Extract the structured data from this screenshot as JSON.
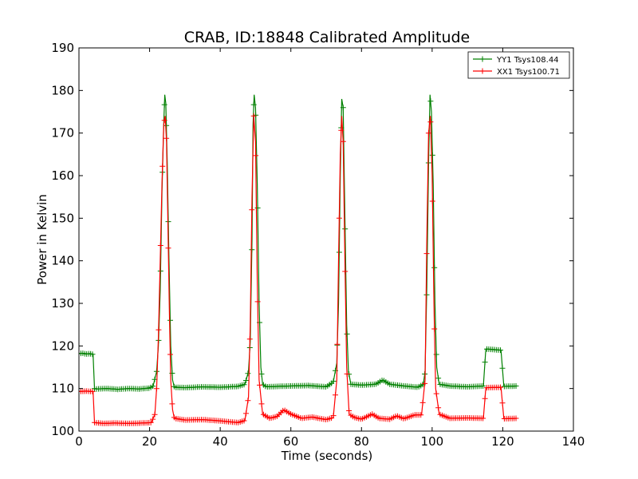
{
  "chart_data": {
    "type": "line",
    "title": "CRAB, ID:18848 Calibrated Amplitude",
    "xlabel": "Time (seconds)",
    "ylabel": "Power in Kelvin",
    "xlim": [
      0,
      140
    ],
    "ylim": [
      100,
      190
    ],
    "xticks": [
      0,
      20,
      40,
      60,
      80,
      100,
      120,
      140
    ],
    "yticks": [
      100,
      110,
      120,
      130,
      140,
      150,
      160,
      170,
      180,
      190
    ],
    "grid": false,
    "legend_position": "top-right",
    "marker": "+",
    "series": [
      {
        "name": "YY1 Tsys108.44",
        "color": "#008000",
        "points": [
          [
            0,
            118.2
          ],
          [
            1,
            118.3
          ],
          [
            2,
            118.1
          ],
          [
            3,
            118.2
          ],
          [
            4,
            118.0
          ],
          [
            4.4,
            110.0
          ],
          [
            5,
            109.9
          ],
          [
            8,
            110.0
          ],
          [
            11,
            109.8
          ],
          [
            14,
            110.0
          ],
          [
            17,
            109.9
          ],
          [
            20,
            110.1
          ],
          [
            21,
            110.6
          ],
          [
            22,
            114
          ],
          [
            22.5,
            120
          ],
          [
            23,
            133
          ],
          [
            23.5,
            156
          ],
          [
            24,
            172
          ],
          [
            24.3,
            179
          ],
          [
            24.6,
            177
          ],
          [
            25,
            163
          ],
          [
            25.5,
            140
          ],
          [
            26,
            120
          ],
          [
            26.5,
            112
          ],
          [
            27,
            110.3
          ],
          [
            30,
            110.2
          ],
          [
            35,
            110.4
          ],
          [
            40,
            110.3
          ],
          [
            45,
            110.5
          ],
          [
            47,
            111.0
          ],
          [
            48,
            114
          ],
          [
            48.5,
            121
          ],
          [
            49,
            145
          ],
          [
            49.3,
            172
          ],
          [
            49.6,
            179
          ],
          [
            50,
            176
          ],
          [
            50.5,
            158
          ],
          [
            51,
            130
          ],
          [
            51.5,
            115
          ],
          [
            52,
            111
          ],
          [
            53,
            110.4
          ],
          [
            56,
            110.5
          ],
          [
            60,
            110.6
          ],
          [
            65,
            110.7
          ],
          [
            70,
            110.4
          ],
          [
            72,
            111.5
          ],
          [
            73,
            116
          ],
          [
            73.5,
            130
          ],
          [
            74,
            160
          ],
          [
            74.4,
            178
          ],
          [
            74.8,
            176
          ],
          [
            75.3,
            150
          ],
          [
            75.8,
            125
          ],
          [
            76.3,
            114
          ],
          [
            77,
            111
          ],
          [
            80,
            110.8
          ],
          [
            84,
            111.0
          ],
          [
            86,
            112.0
          ],
          [
            88,
            111.0
          ],
          [
            92,
            110.6
          ],
          [
            96,
            110.3
          ],
          [
            97.5,
            111.0
          ],
          [
            98,
            114
          ],
          [
            98.5,
            134
          ],
          [
            99,
            163
          ],
          [
            99.4,
            179
          ],
          [
            99.8,
            175
          ],
          [
            100.3,
            158
          ],
          [
            100.8,
            130
          ],
          [
            101.3,
            115
          ],
          [
            102,
            111
          ],
          [
            105,
            110.6
          ],
          [
            110,
            110.4
          ],
          [
            114.5,
            110.6
          ],
          [
            115.2,
            119.3
          ],
          [
            118,
            119.1
          ],
          [
            119.5,
            119.0
          ],
          [
            120.3,
            110.5
          ],
          [
            124,
            110.6
          ]
        ]
      },
      {
        "name": "XX1 Tsys100.71",
        "color": "#ff0000",
        "points": [
          [
            0,
            109.3
          ],
          [
            2,
            109.4
          ],
          [
            4,
            109.3
          ],
          [
            4.4,
            102.0
          ],
          [
            7,
            101.8
          ],
          [
            10,
            101.9
          ],
          [
            14,
            101.8
          ],
          [
            18,
            101.9
          ],
          [
            20.5,
            102.0
          ],
          [
            21.5,
            104
          ],
          [
            22,
            110
          ],
          [
            22.5,
            122
          ],
          [
            23,
            140
          ],
          [
            23.5,
            158
          ],
          [
            24,
            172
          ],
          [
            24.4,
            174
          ],
          [
            24.8,
            168
          ],
          [
            25.2,
            148
          ],
          [
            25.6,
            128
          ],
          [
            26,
            112
          ],
          [
            26.5,
            105
          ],
          [
            27,
            103.0
          ],
          [
            30,
            102.6
          ],
          [
            35,
            102.7
          ],
          [
            40,
            102.4
          ],
          [
            45,
            102.0
          ],
          [
            47,
            102.5
          ],
          [
            48,
            108
          ],
          [
            48.5,
            125
          ],
          [
            49,
            155
          ],
          [
            49.5,
            174
          ],
          [
            50,
            168
          ],
          [
            50.5,
            135
          ],
          [
            51,
            112
          ],
          [
            52,
            104
          ],
          [
            54,
            103.0
          ],
          [
            56,
            103.4
          ],
          [
            58,
            105.0
          ],
          [
            60,
            104.0
          ],
          [
            63,
            103.0
          ],
          [
            66,
            103.3
          ],
          [
            70,
            102.7
          ],
          [
            72,
            103.2
          ],
          [
            73,
            112
          ],
          [
            73.5,
            140
          ],
          [
            74,
            165
          ],
          [
            74.4,
            174
          ],
          [
            74.8,
            168
          ],
          [
            75.3,
            140
          ],
          [
            75.8,
            115
          ],
          [
            76.5,
            104
          ],
          [
            78,
            103.2
          ],
          [
            80,
            102.8
          ],
          [
            83,
            104.0
          ],
          [
            85,
            103.0
          ],
          [
            88,
            102.8
          ],
          [
            90,
            103.6
          ],
          [
            92,
            102.9
          ],
          [
            95,
            103.8
          ],
          [
            97,
            103.8
          ],
          [
            98,
            112
          ],
          [
            98.5,
            145
          ],
          [
            99,
            170
          ],
          [
            99.5,
            174
          ],
          [
            100,
            160
          ],
          [
            100.5,
            130
          ],
          [
            101,
            110
          ],
          [
            102,
            104
          ],
          [
            105,
            103.0
          ],
          [
            110,
            103.1
          ],
          [
            114.5,
            103.0
          ],
          [
            115.2,
            110.2
          ],
          [
            119.5,
            110.3
          ],
          [
            120.3,
            102.9
          ],
          [
            124,
            103.0
          ]
        ]
      }
    ]
  }
}
